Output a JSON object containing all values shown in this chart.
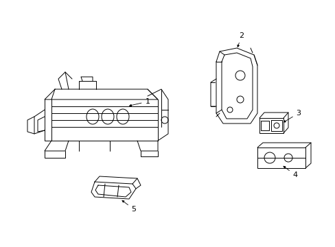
{
  "background_color": "#ffffff",
  "line_color": "#000000",
  "figsize": [
    4.89,
    3.6
  ],
  "dpi": 100,
  "label_fontsize": 8
}
